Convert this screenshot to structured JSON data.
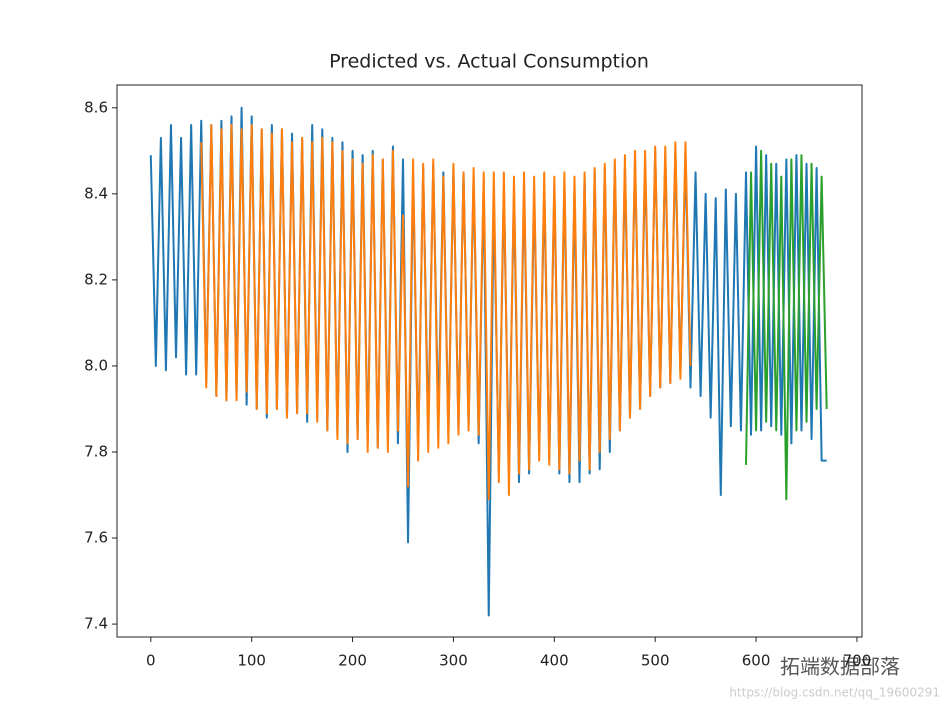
{
  "chart_data": {
    "type": "line",
    "title": "Predicted vs. Actual Consumption",
    "xlim": [
      -33.5,
      705
    ],
    "xticks": [
      0,
      100,
      200,
      300,
      400,
      500,
      600,
      700
    ],
    "ylim": [
      7.37,
      8.653
    ],
    "yticks": [
      7.4,
      7.6,
      7.8,
      8.0,
      8.2,
      8.4,
      8.6
    ],
    "grid": false,
    "series": [
      {
        "color": "#1f77b4",
        "x": [
          0,
          5,
          10,
          15,
          20,
          25,
          30,
          35,
          40,
          45,
          50,
          55,
          60,
          65,
          70,
          75,
          80,
          85,
          90,
          95,
          100,
          105,
          110,
          115,
          120,
          125,
          130,
          135,
          140,
          145,
          150,
          155,
          160,
          165,
          170,
          175,
          180,
          185,
          190,
          195,
          200,
          205,
          210,
          215,
          220,
          225,
          230,
          235,
          240,
          245,
          250,
          255,
          260,
          265,
          270,
          275,
          280,
          285,
          290,
          295,
          300,
          305,
          310,
          315,
          320,
          325,
          330,
          335,
          340,
          345,
          350,
          355,
          360,
          365,
          370,
          375,
          380,
          385,
          390,
          395,
          400,
          405,
          410,
          415,
          420,
          425,
          430,
          435,
          440,
          445,
          450,
          455,
          460,
          465,
          470,
          475,
          480,
          485,
          490,
          495,
          500,
          505,
          510,
          515,
          520,
          525,
          530,
          535,
          540,
          545,
          550,
          555,
          560,
          565,
          570,
          575,
          580,
          585,
          590,
          595,
          600,
          605,
          610,
          615,
          620,
          625,
          630,
          635,
          640,
          645,
          650,
          655,
          660,
          665,
          670
        ],
        "values": [
          8.49,
          8.0,
          8.53,
          7.99,
          8.56,
          8.02,
          8.53,
          7.98,
          8.56,
          7.98,
          8.57,
          7.96,
          8.56,
          7.93,
          8.57,
          7.92,
          8.58,
          7.93,
          8.6,
          7.91,
          8.58,
          7.9,
          8.55,
          7.88,
          8.56,
          7.9,
          8.55,
          7.88,
          8.54,
          7.89,
          8.53,
          7.87,
          8.56,
          7.88,
          8.55,
          7.85,
          8.53,
          7.84,
          8.52,
          7.8,
          8.5,
          7.83,
          8.49,
          7.82,
          8.5,
          7.81,
          8.48,
          7.83,
          8.51,
          7.82,
          8.48,
          7.59,
          8.45,
          7.8,
          8.46,
          7.85,
          8.47,
          7.87,
          8.45,
          7.84,
          8.46,
          7.85,
          8.45,
          7.86,
          8.44,
          7.82,
          8.43,
          7.42,
          8.4,
          7.75,
          8.41,
          7.76,
          8.4,
          7.73,
          8.42,
          7.75,
          8.4,
          7.8,
          8.41,
          7.78,
          8.42,
          7.75,
          8.43,
          7.73,
          8.41,
          7.73,
          8.44,
          7.75,
          8.45,
          7.76,
          8.46,
          7.8,
          8.47,
          7.85,
          8.46,
          7.88,
          8.48,
          7.9,
          8.47,
          7.93,
          8.5,
          7.95,
          8.49,
          7.96,
          8.5,
          7.98,
          8.49,
          7.95,
          8.45,
          7.93,
          8.4,
          7.88,
          8.39,
          7.7,
          8.41,
          7.86,
          8.4,
          7.85,
          8.45,
          7.84,
          8.51,
          7.85,
          8.49,
          7.86,
          8.47,
          7.84,
          8.48,
          7.82,
          8.49,
          7.85,
          8.47,
          7.83,
          8.46,
          7.78,
          7.78
        ]
      },
      {
        "color": "#ff7f0e",
        "x": [
          50,
          55,
          60,
          65,
          70,
          75,
          80,
          85,
          90,
          95,
          100,
          105,
          110,
          115,
          120,
          125,
          130,
          135,
          140,
          145,
          150,
          155,
          160,
          165,
          170,
          175,
          180,
          185,
          190,
          195,
          200,
          205,
          210,
          215,
          220,
          225,
          230,
          235,
          240,
          245,
          250,
          255,
          260,
          265,
          270,
          275,
          280,
          285,
          290,
          295,
          300,
          305,
          310,
          315,
          320,
          325,
          330,
          335,
          340,
          345,
          350,
          355,
          360,
          365,
          370,
          375,
          380,
          385,
          390,
          395,
          400,
          405,
          410,
          415,
          420,
          425,
          430,
          435,
          440,
          445,
          450,
          455,
          460,
          465,
          470,
          475,
          480,
          485,
          490,
          495,
          500,
          505,
          510,
          515,
          520,
          525,
          530,
          535
        ],
        "values": [
          8.52,
          7.95,
          8.56,
          7.93,
          8.55,
          7.92,
          8.56,
          7.92,
          8.55,
          7.94,
          8.56,
          7.9,
          8.55,
          7.89,
          8.54,
          7.9,
          8.55,
          7.88,
          8.52,
          7.89,
          8.53,
          7.89,
          8.52,
          7.87,
          8.53,
          7.85,
          8.52,
          7.83,
          8.5,
          7.82,
          8.48,
          7.83,
          8.47,
          7.8,
          8.49,
          7.81,
          8.48,
          7.8,
          8.5,
          7.85,
          8.35,
          7.72,
          8.48,
          7.78,
          8.47,
          7.8,
          8.48,
          7.81,
          8.44,
          7.82,
          8.47,
          7.84,
          8.45,
          7.85,
          8.46,
          7.84,
          8.45,
          7.69,
          8.45,
          7.73,
          8.45,
          7.7,
          8.44,
          7.75,
          8.45,
          7.76,
          8.44,
          7.78,
          8.45,
          7.77,
          8.44,
          7.76,
          8.45,
          7.75,
          8.44,
          7.78,
          8.45,
          7.76,
          8.46,
          7.8,
          8.47,
          7.83,
          8.48,
          7.85,
          8.49,
          7.88,
          8.5,
          7.9,
          8.5,
          7.93,
          8.51,
          7.95,
          8.51,
          7.96,
          8.52,
          7.97,
          8.52,
          8.0
        ]
      },
      {
        "color": "#2ca02c",
        "x": [
          590,
          595,
          600,
          605,
          610,
          615,
          620,
          625,
          630,
          635,
          640,
          645,
          650,
          655,
          660,
          665,
          670
        ],
        "values": [
          7.77,
          8.45,
          7.85,
          8.5,
          7.87,
          8.47,
          7.85,
          8.44,
          7.69,
          8.48,
          7.85,
          8.49,
          7.87,
          8.47,
          7.9,
          8.44,
          7.9
        ]
      }
    ]
  },
  "watermark": "拓端数据部落",
  "watermark_url": "https://blog.csdn.net/qq_19600291"
}
